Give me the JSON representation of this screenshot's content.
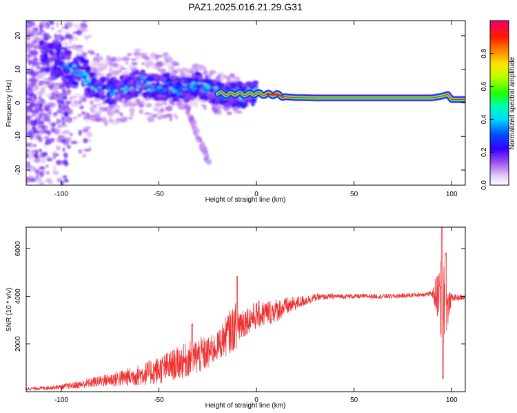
{
  "chart_data": [
    {
      "type": "heatmap",
      "title": "PAZ1.2025.016.21.29.G31",
      "xlabel": "Height of straight line (km)",
      "ylabel": "Frequency (Hz)",
      "xlim": [
        -118,
        107
      ],
      "ylim": [
        -24.5,
        24.5
      ],
      "xticks": [
        -100,
        -50,
        0,
        50,
        100
      ],
      "yticks": [
        -20,
        -10,
        0,
        10,
        20
      ],
      "colorbar": {
        "label": "Normalized spectral amplitude",
        "range": [
          0,
          1
        ],
        "ticks": [
          0.0,
          0.2,
          0.4,
          0.6,
          0.8
        ],
        "tick_labels": [
          "0.0",
          "0.2",
          "0.4",
          "0.6",
          "0.8"
        ]
      },
      "dominant_frequency_trace": {
        "x": [
          -118,
          -110,
          -100,
          -95,
          -90,
          -85,
          -80,
          -75,
          -70,
          -65,
          -60,
          -55,
          -50,
          -45,
          -40,
          -35,
          -30,
          -25,
          -20,
          -15,
          -10,
          -5,
          0,
          5,
          10,
          15,
          20,
          30,
          40,
          50,
          60,
          70,
          80,
          90,
          95,
          98,
          100,
          107
        ],
        "y": [
          16,
          15,
          12,
          10,
          9,
          5.5,
          4,
          3.5,
          4,
          4.5,
          6.5,
          5,
          4.5,
          5,
          4,
          4,
          5.5,
          4,
          3,
          2.5,
          2.8,
          2.5,
          2.8,
          2.5,
          2.5,
          1.8,
          1.6,
          1.5,
          1.5,
          1.5,
          1.5,
          1.5,
          1.5,
          1.5,
          2,
          2.5,
          1,
          1
        ]
      }
    },
    {
      "type": "line",
      "xlabel": "Height of straight line (km)",
      "ylabel": "SNR (10 * v/v)",
      "xlim": [
        -118,
        107
      ],
      "ylim": [
        0,
        6900
      ],
      "xticks": [
        -100,
        -50,
        0,
        50,
        100
      ],
      "yticks": [
        2000,
        4000,
        6000
      ],
      "line_color": "#ee3333",
      "envelope": {
        "x": [
          -118,
          -110,
          -100,
          -90,
          -80,
          -70,
          -60,
          -50,
          -40,
          -30,
          -25,
          -20,
          -15,
          -10,
          -5,
          0,
          10,
          20,
          30,
          40,
          50,
          60,
          70,
          80,
          88,
          92,
          94,
          95,
          96,
          97,
          98,
          100,
          107
        ],
        "y": [
          120,
          150,
          200,
          300,
          450,
          550,
          700,
          900,
          1200,
          1500,
          1600,
          1900,
          2400,
          2800,
          3000,
          3200,
          3400,
          3700,
          3950,
          4000,
          4000,
          4000,
          4000,
          4050,
          4100,
          4100,
          3800,
          3500,
          4500,
          3800,
          3500,
          3950,
          3950
        ]
      },
      "noise_amplitude": {
        "x": [
          -118,
          -100,
          -80,
          -60,
          -50,
          -40,
          -30,
          -25,
          -20,
          -15,
          -10,
          -5,
          0,
          10,
          20,
          30,
          40,
          90,
          94,
          95,
          96,
          97,
          98,
          100,
          107
        ],
        "y": [
          60,
          100,
          250,
          450,
          600,
          700,
          800,
          700,
          600,
          900,
          1000,
          600,
          600,
          500,
          300,
          150,
          100,
          100,
          1500,
          2400,
          2500,
          1800,
          800,
          150,
          100
        ]
      },
      "peaks": [
        {
          "x": -33,
          "y": 2800
        },
        {
          "x": -10,
          "y": 4800
        },
        {
          "x": 94,
          "y": 4400
        },
        {
          "x": 95,
          "y": 6900
        },
        {
          "x": 95.5,
          "y": 600
        },
        {
          "x": 97,
          "y": 5800
        }
      ]
    }
  ]
}
